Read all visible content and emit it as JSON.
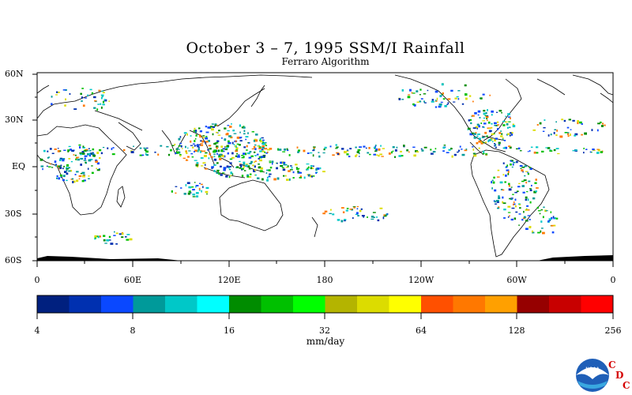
{
  "title": "October 3 – 7, 1995 SSM/I Rainfall",
  "subtitle": "Ferraro Algorithm",
  "lat_labels": [
    "60N",
    "30N",
    "EQ",
    "30S",
    "60S"
  ],
  "lon_labels": [
    "0",
    "60E",
    "120E",
    "180",
    "120W",
    "60W",
    "0"
  ],
  "colorbar": {
    "labels": [
      "4",
      "8",
      "16",
      "32",
      "64",
      "128",
      "256"
    ],
    "units": "mm/day",
    "colors": [
      "#00207f",
      "#0030b0",
      "#0a48ff",
      "#009a9a",
      "#00c8c8",
      "#00ffff",
      "#008c00",
      "#00c000",
      "#00ff00",
      "#b4b400",
      "#dcdc00",
      "#ffff00",
      "#ff5000",
      "#ff7800",
      "#ffa000",
      "#960000",
      "#c80000",
      "#ff0000"
    ]
  },
  "logo": {
    "text": "NOAA",
    "cdc_letters": [
      "C",
      "D",
      "C"
    ]
  }
}
